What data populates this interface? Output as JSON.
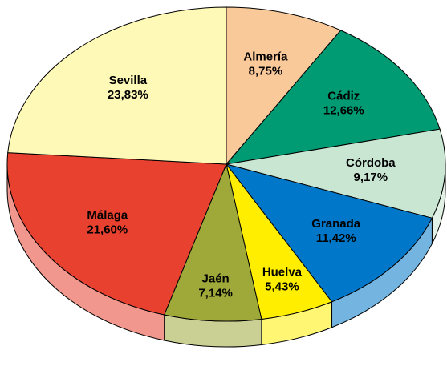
{
  "chart_data": {
    "type": "pie",
    "categories": [
      "Almería",
      "Cádiz",
      "Córdoba",
      "Granada",
      "Huelva",
      "Jaén",
      "Málaga",
      "Sevilla"
    ],
    "values": [
      8.75,
      12.66,
      9.17,
      11.42,
      5.43,
      7.14,
      21.6,
      23.83
    ],
    "value_labels": [
      "8,75%",
      "12,66%",
      "9,17%",
      "11,42%",
      "5,43%",
      "7,14%",
      "21,60%",
      "23,83%"
    ],
    "colors": [
      "#f9c99a",
      "#009a73",
      "#c8e6d2",
      "#0077c8",
      "#ffee00",
      "#9ea93a",
      "#e8412f",
      "#fff9b8"
    ]
  }
}
